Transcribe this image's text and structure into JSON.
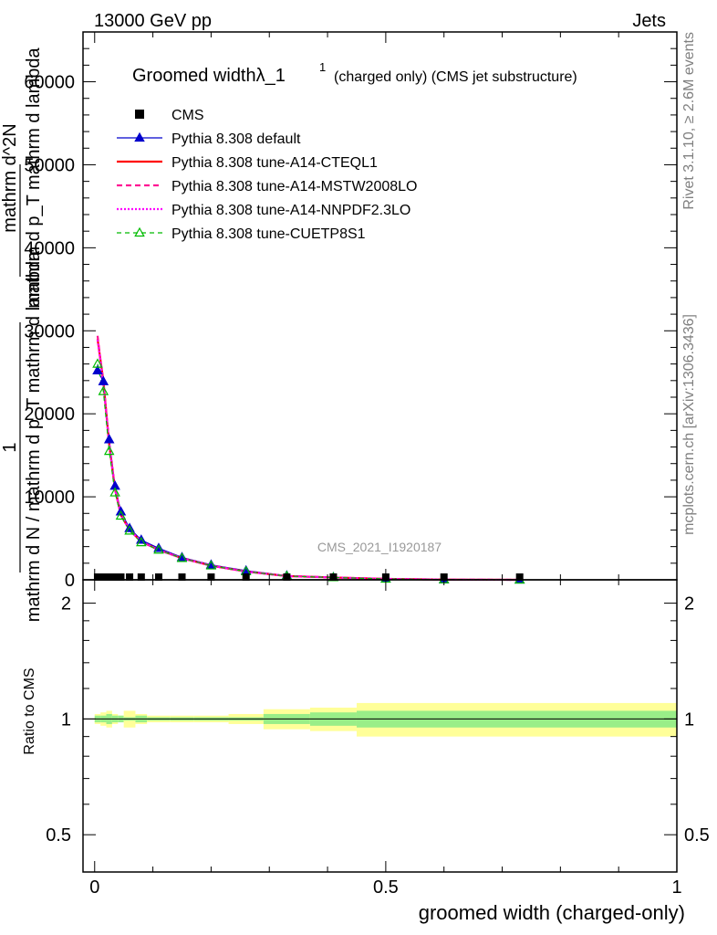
{
  "header": {
    "left": "13000 GeV pp",
    "right": "Jets"
  },
  "side": {
    "rivet": "Rivet 3.1.10, ≥ 2.6M events",
    "mcplots": "mcplots.cern.ch [arXiv:1306.3436]"
  },
  "watermark": "CMS_2021_I1920187",
  "title_main": "Groomed widthλ_1",
  "title_sup": "1",
  "title_suffix": "(charged only) (CMS jet substructure)",
  "ylabel_lines": [
    "1",
    "mathrm d N / mathrm d p_T mathrm d lambda",
    "mathrm d^2N",
    "mathrm d p_T mathrm d lambda"
  ],
  "ratio_ylabel": "Ratio to CMS",
  "xlabel": "groomed width (charged-only)",
  "colors": {
    "cms": "#000000",
    "default": "#0000cc",
    "cteql1": "#ff0000",
    "mstw": "#ff1493",
    "nnpdf": "#ff00ff",
    "cuetp": "#00bb00",
    "band_inner": "#99ee88",
    "band_outer": "#ffff99"
  },
  "chart_data": {
    "type": "line",
    "x_range": [
      -0.02,
      1.0
    ],
    "main_ylim": [
      0,
      66000
    ],
    "ratio_ylim": [
      0.4,
      2.3
    ],
    "ratio_scale": "log",
    "x_ticks": [
      "0",
      "0.5",
      "1"
    ],
    "main_y_ticks": [
      "0",
      "10000",
      "20000",
      "30000",
      "40000",
      "50000",
      "60000"
    ],
    "ratio_y_ticks": [
      "0.5",
      "1",
      "2"
    ],
    "legend": [
      {
        "key": "cms",
        "label": "CMS"
      },
      {
        "key": "default",
        "label": "Pythia 8.308 default"
      },
      {
        "key": "cteql1",
        "label": "Pythia 8.308 tune-A14-CTEQL1"
      },
      {
        "key": "mstw",
        "label": "Pythia 8.308 tune-A14-MSTW2008LO"
      },
      {
        "key": "nnpdf",
        "label": "Pythia 8.308 tune-A14-NNPDF2.3LO"
      },
      {
        "key": "cuetp",
        "label": "Pythia 8.308 tune-CUETP8S1"
      }
    ],
    "cms_points": {
      "x": [
        0.005,
        0.015,
        0.025,
        0.035,
        0.045,
        0.06,
        0.08,
        0.11,
        0.15,
        0.2,
        0.26,
        0.33,
        0.41,
        0.5,
        0.6,
        0.73
      ],
      "y": [
        0,
        0,
        0,
        0,
        0,
        0,
        0,
        0,
        0,
        0,
        0,
        0,
        0,
        0,
        0,
        0
      ]
    },
    "series": [
      {
        "key": "default",
        "x": [
          0.005,
          0.015,
          0.025,
          0.035,
          0.045,
          0.06,
          0.08,
          0.11,
          0.15,
          0.2,
          0.26,
          0.33,
          0.41,
          0.5,
          0.6,
          0.73
        ],
        "y": [
          25200,
          23900,
          16900,
          11300,
          8200,
          6200,
          4800,
          3800,
          2700,
          1800,
          1100,
          500,
          300,
          120,
          30,
          0
        ]
      },
      {
        "key": "cteql1",
        "x": [
          0.005,
          0.015,
          0.025,
          0.035,
          0.045,
          0.06,
          0.08,
          0.11,
          0.15,
          0.2,
          0.26,
          0.33,
          0.41,
          0.5,
          0.6,
          0.73
        ],
        "y": [
          29000,
          24000,
          16300,
          10900,
          7800,
          6000,
          4600,
          3600,
          2600,
          1700,
          1000,
          450,
          280,
          110,
          25,
          0
        ]
      },
      {
        "key": "mstw",
        "x": [
          0.005,
          0.015,
          0.025,
          0.035,
          0.045,
          0.06,
          0.08,
          0.11,
          0.15,
          0.2,
          0.26,
          0.33,
          0.41,
          0.5,
          0.6,
          0.73
        ],
        "y": [
          29400,
          23600,
          16400,
          11000,
          7900,
          6000,
          4600,
          3600,
          2600,
          1700,
          1000,
          450,
          280,
          110,
          25,
          0
        ]
      },
      {
        "key": "nnpdf",
        "x": [
          0.005,
          0.015,
          0.025,
          0.035,
          0.045,
          0.06,
          0.08,
          0.11,
          0.15,
          0.2,
          0.26,
          0.33,
          0.41,
          0.5,
          0.6,
          0.73
        ],
        "y": [
          28900,
          23700,
          16300,
          10900,
          7800,
          6000,
          4600,
          3600,
          2600,
          1700,
          1000,
          450,
          280,
          110,
          25,
          0
        ]
      },
      {
        "key": "cuetp",
        "x": [
          0.005,
          0.015,
          0.025,
          0.035,
          0.045,
          0.06,
          0.08,
          0.11,
          0.15,
          0.2,
          0.26,
          0.33,
          0.41,
          0.5,
          0.6,
          0.73
        ],
        "y": [
          26000,
          22700,
          15500,
          10500,
          7700,
          5900,
          4500,
          3600,
          2600,
          1700,
          1000,
          450,
          280,
          110,
          25,
          0
        ]
      }
    ],
    "ratio_band": {
      "edges": [
        0.0,
        0.01,
        0.02,
        0.03,
        0.04,
        0.05,
        0.07,
        0.09,
        0.13,
        0.17,
        0.23,
        0.29,
        0.37,
        0.45,
        1.0
      ],
      "inner_lo": [
        0.98,
        0.98,
        0.97,
        0.98,
        0.98,
        0.99,
        0.98,
        0.99,
        0.99,
        0.99,
        0.99,
        0.97,
        0.96,
        0.95
      ],
      "inner_hi": [
        1.02,
        1.02,
        1.03,
        1.02,
        1.02,
        1.01,
        1.02,
        1.01,
        1.01,
        1.01,
        1.01,
        1.03,
        1.04,
        1.05
      ],
      "outer_lo": [
        0.97,
        0.96,
        0.95,
        0.97,
        0.98,
        0.95,
        0.97,
        0.98,
        0.98,
        0.98,
        0.97,
        0.94,
        0.93,
        0.9
      ],
      "outer_hi": [
        1.03,
        1.04,
        1.05,
        1.03,
        1.02,
        1.05,
        1.03,
        1.02,
        1.02,
        1.02,
        1.03,
        1.06,
        1.07,
        1.1
      ]
    }
  }
}
